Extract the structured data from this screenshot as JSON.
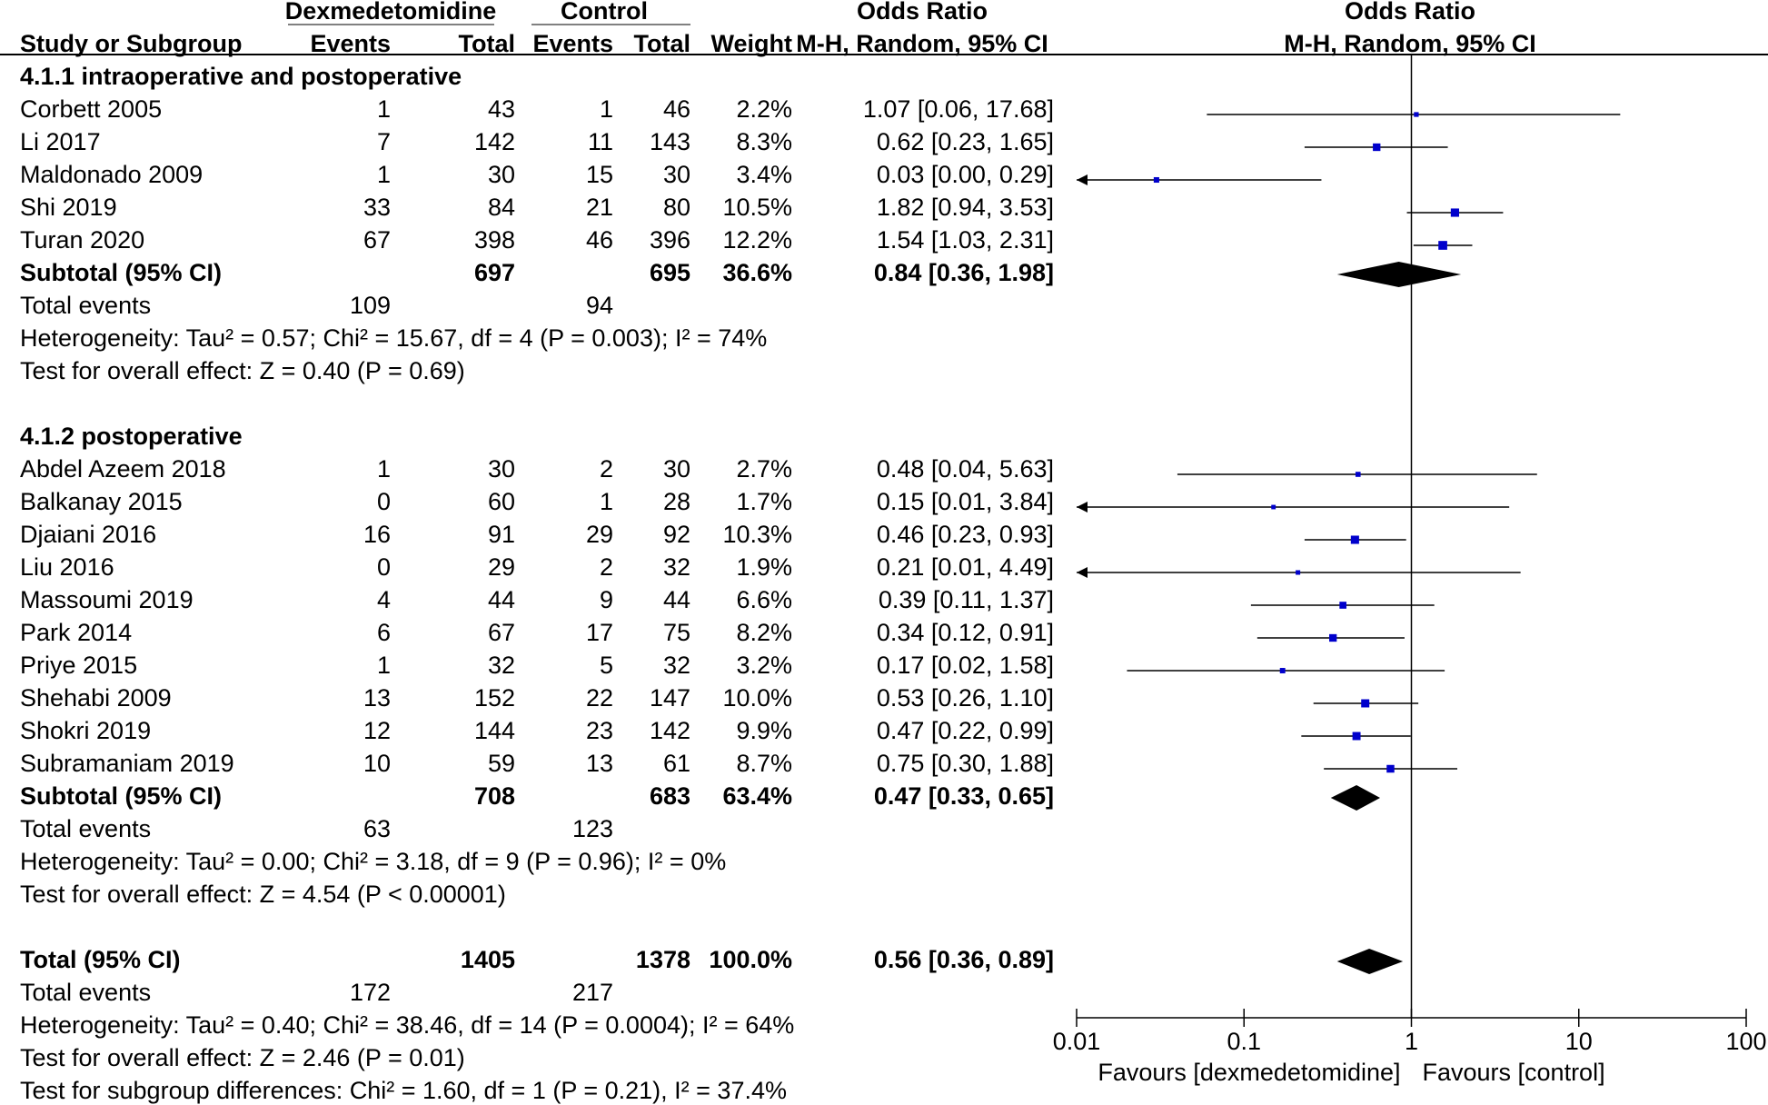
{
  "header": {
    "group1_label": "Dexmedetomidine",
    "group2_label": "Control",
    "or_label": "Odds Ratio",
    "plot_label": "Odds Ratio",
    "col_study": "Study or Subgroup",
    "col_events1": "Events",
    "col_total1": "Total",
    "col_events2": "Events",
    "col_total2": "Total",
    "col_weight": "Weight",
    "col_method": "M-H, Random, 95% CI",
    "plot_method": "M-H, Random, 95% CI"
  },
  "subgroups": [
    {
      "title": "4.1.1 intraoperative and postoperative",
      "studies": [
        {
          "name": "Corbett 2005",
          "e1": "1",
          "t1": "43",
          "e2": "1",
          "t2": "46",
          "weight": "2.2%",
          "ci_text": "1.07 [0.06, 17.68]"
        },
        {
          "name": "Li 2017",
          "e1": "7",
          "t1": "142",
          "e2": "11",
          "t2": "143",
          "weight": "8.3%",
          "ci_text": "0.62 [0.23, 1.65]"
        },
        {
          "name": "Maldonado 2009",
          "e1": "1",
          "t1": "30",
          "e2": "15",
          "t2": "30",
          "weight": "3.4%",
          "ci_text": "0.03 [0.00, 0.29]"
        },
        {
          "name": "Shi 2019",
          "e1": "33",
          "t1": "84",
          "e2": "21",
          "t2": "80",
          "weight": "10.5%",
          "ci_text": "1.82 [0.94, 3.53]"
        },
        {
          "name": "Turan 2020",
          "e1": "67",
          "t1": "398",
          "e2": "46",
          "t2": "396",
          "weight": "12.2%",
          "ci_text": "1.54 [1.03, 2.31]"
        }
      ],
      "subtotal": {
        "label": "Subtotal (95% CI)",
        "t1": "697",
        "t2": "695",
        "weight": "36.6%",
        "ci_text": "0.84 [0.36, 1.98]"
      },
      "events": {
        "label": "Total events",
        "e1": "109",
        "e2": "94"
      },
      "heterogeneity": "Heterogeneity: Tau² = 0.57; Chi² = 15.67, df = 4 (P = 0.003); I² = 74%",
      "overall": "Test for overall effect: Z = 0.40 (P = 0.69)"
    },
    {
      "title": "4.1.2 postoperative",
      "studies": [
        {
          "name": "Abdel Azeem 2018",
          "e1": "1",
          "t1": "30",
          "e2": "2",
          "t2": "30",
          "weight": "2.7%",
          "ci_text": "0.48 [0.04, 5.63]"
        },
        {
          "name": "Balkanay 2015",
          "e1": "0",
          "t1": "60",
          "e2": "1",
          "t2": "28",
          "weight": "1.7%",
          "ci_text": "0.15 [0.01, 3.84]"
        },
        {
          "name": "Djaiani 2016",
          "e1": "16",
          "t1": "91",
          "e2": "29",
          "t2": "92",
          "weight": "10.3%",
          "ci_text": "0.46 [0.23, 0.93]"
        },
        {
          "name": "Liu 2016",
          "e1": "0",
          "t1": "29",
          "e2": "2",
          "t2": "32",
          "weight": "1.9%",
          "ci_text": "0.21 [0.01, 4.49]"
        },
        {
          "name": "Massoumi 2019",
          "e1": "4",
          "t1": "44",
          "e2": "9",
          "t2": "44",
          "weight": "6.6%",
          "ci_text": "0.39 [0.11, 1.37]"
        },
        {
          "name": "Park 2014",
          "e1": "6",
          "t1": "67",
          "e2": "17",
          "t2": "75",
          "weight": "8.2%",
          "ci_text": "0.34 [0.12, 0.91]"
        },
        {
          "name": "Priye 2015",
          "e1": "1",
          "t1": "32",
          "e2": "5",
          "t2": "32",
          "weight": "3.2%",
          "ci_text": "0.17 [0.02, 1.58]"
        },
        {
          "name": "Shehabi 2009",
          "e1": "13",
          "t1": "152",
          "e2": "22",
          "t2": "147",
          "weight": "10.0%",
          "ci_text": "0.53 [0.26, 1.10]"
        },
        {
          "name": "Shokri 2019",
          "e1": "12",
          "t1": "144",
          "e2": "23",
          "t2": "142",
          "weight": "9.9%",
          "ci_text": "0.47 [0.22, 0.99]"
        },
        {
          "name": "Subramaniam 2019",
          "e1": "10",
          "t1": "59",
          "e2": "13",
          "t2": "61",
          "weight": "8.7%",
          "ci_text": "0.75 [0.30, 1.88]"
        }
      ],
      "subtotal": {
        "label": "Subtotal (95% CI)",
        "t1": "708",
        "t2": "683",
        "weight": "63.4%",
        "ci_text": "0.47 [0.33, 0.65]"
      },
      "events": {
        "label": "Total events",
        "e1": "63",
        "e2": "123"
      },
      "heterogeneity": "Heterogeneity: Tau² = 0.00; Chi² = 3.18, df = 9 (P = 0.96); I² = 0%",
      "overall": "Test for overall effect: Z = 4.54 (P < 0.00001)"
    }
  ],
  "total": {
    "label": "Total (95% CI)",
    "t1": "1405",
    "t2": "1378",
    "weight": "100.0%",
    "ci_text": "0.56 [0.36, 0.89]",
    "events": {
      "label": "Total events",
      "e1": "172",
      "e2": "217"
    },
    "heterogeneity": "Heterogeneity: Tau² = 0.40; Chi² = 38.46, df = 14 (P = 0.0004); I² = 64%",
    "overall": "Test for overall effect: Z = 2.46 (P = 0.01)",
    "subgroup_diff": "Test for subgroup differences: Chi² = 1.60, df = 1 (P = 0.21), I² = 37.4%"
  },
  "axis": {
    "ticks": [
      0.01,
      0.1,
      1,
      10,
      100
    ],
    "tick_labels": [
      "0.01",
      "0.1",
      "1",
      "10",
      "100"
    ],
    "favours_left": "Favours [dexmedetomidine]",
    "favours_right": "Favours [control]"
  },
  "colors": {
    "square": "#0000cc",
    "diamond": "#000000",
    "line": "#000000"
  },
  "chart_data": {
    "type": "forest",
    "title": "Odds Ratio M-H, Random, 95% CI",
    "scale": "log",
    "xlim": [
      0.01,
      100
    ],
    "null_value": 1,
    "xlabel_left": "Favours [dexmedetomidine]",
    "xlabel_right": "Favours [control]",
    "studies": [
      {
        "name": "Corbett 2005",
        "or": 1.07,
        "lo": 0.06,
        "hi": 17.68,
        "weight": 2.2
      },
      {
        "name": "Li 2017",
        "or": 0.62,
        "lo": 0.23,
        "hi": 1.65,
        "weight": 8.3
      },
      {
        "name": "Maldonado 2009",
        "or": 0.03,
        "lo": 0.0,
        "hi": 0.29,
        "weight": 3.4
      },
      {
        "name": "Shi 2019",
        "or": 1.82,
        "lo": 0.94,
        "hi": 3.53,
        "weight": 10.5
      },
      {
        "name": "Turan 2020",
        "or": 1.54,
        "lo": 1.03,
        "hi": 2.31,
        "weight": 12.2
      },
      {
        "name": "Abdel Azeem 2018",
        "or": 0.48,
        "lo": 0.04,
        "hi": 5.63,
        "weight": 2.7
      },
      {
        "name": "Balkanay 2015",
        "or": 0.15,
        "lo": 0.01,
        "hi": 3.84,
        "weight": 1.7
      },
      {
        "name": "Djaiani 2016",
        "or": 0.46,
        "lo": 0.23,
        "hi": 0.93,
        "weight": 10.3
      },
      {
        "name": "Liu 2016",
        "or": 0.21,
        "lo": 0.01,
        "hi": 4.49,
        "weight": 1.9
      },
      {
        "name": "Massoumi 2019",
        "or": 0.39,
        "lo": 0.11,
        "hi": 1.37,
        "weight": 6.6
      },
      {
        "name": "Park 2014",
        "or": 0.34,
        "lo": 0.12,
        "hi": 0.91,
        "weight": 8.2
      },
      {
        "name": "Priye 2015",
        "or": 0.17,
        "lo": 0.02,
        "hi": 1.58,
        "weight": 3.2
      },
      {
        "name": "Shehabi 2009",
        "or": 0.53,
        "lo": 0.26,
        "hi": 1.1,
        "weight": 10.0
      },
      {
        "name": "Shokri 2019",
        "or": 0.47,
        "lo": 0.22,
        "hi": 0.99,
        "weight": 9.9
      },
      {
        "name": "Subramaniam 2019",
        "or": 0.75,
        "lo": 0.3,
        "hi": 1.88,
        "weight": 8.7
      }
    ],
    "pooled": [
      {
        "name": "Subtotal 4.1.1 intraoperative and postoperative",
        "or": 0.84,
        "lo": 0.36,
        "hi": 1.98
      },
      {
        "name": "Subtotal 4.1.2 postoperative",
        "or": 0.47,
        "lo": 0.33,
        "hi": 0.65
      },
      {
        "name": "Total",
        "or": 0.56,
        "lo": 0.36,
        "hi": 0.89
      }
    ]
  }
}
